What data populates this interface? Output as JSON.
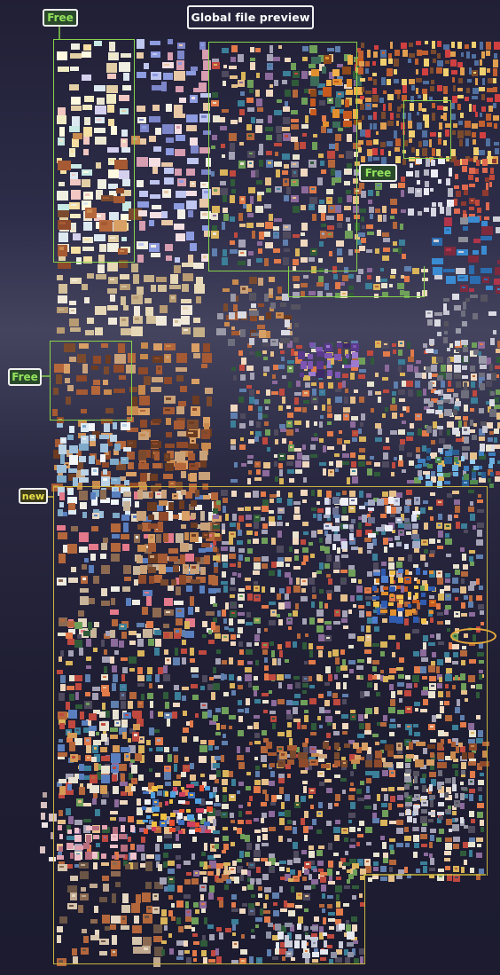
{
  "header": {
    "title": "Global file preview"
  },
  "badges": {
    "free_top": "Free",
    "free_mid": "Free",
    "free_left": "Free",
    "new": "new"
  },
  "colors": {
    "background": "#24233a",
    "free_outline": "#86d34a",
    "new_outline": "#c9b53e",
    "free_text": "#92e35c",
    "new_text": "#ece24a",
    "title_border": "#f2f2f2"
  }
}
